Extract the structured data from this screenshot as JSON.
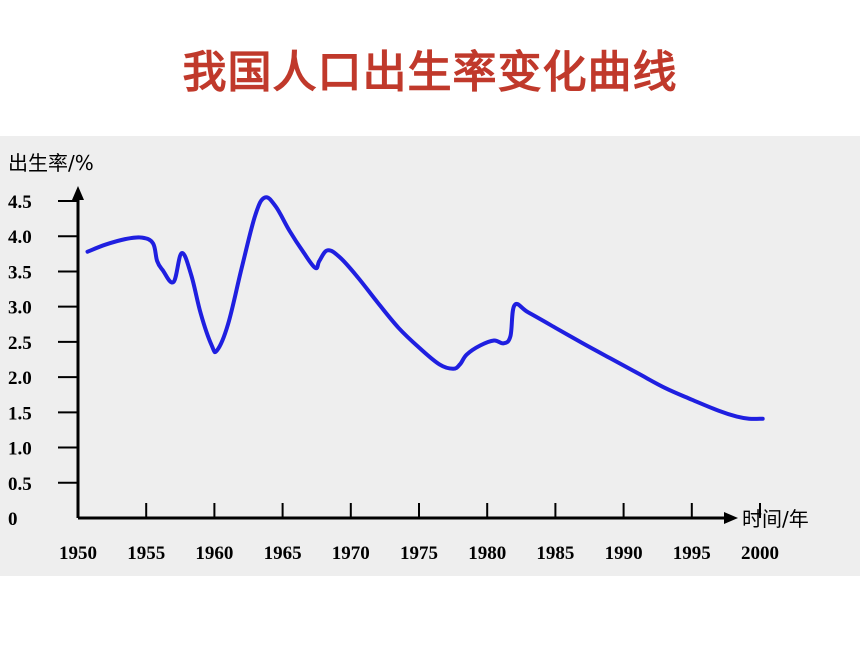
{
  "page": {
    "title": "我国人口出生率变化曲线"
  },
  "chart_data": {
    "type": "line",
    "title": "我国人口出生率变化曲线",
    "ylabel": "出生率/%",
    "xlabel": "时间/年",
    "xlim": [
      1950,
      2000
    ],
    "ylim": [
      0,
      4.5
    ],
    "x_ticks": [
      1950,
      1955,
      1960,
      1965,
      1970,
      1975,
      1980,
      1985,
      1990,
      1995,
      2000
    ],
    "x_tick_labels": [
      "1950",
      "1955",
      "1960",
      "1965",
      "1970",
      "1975",
      "1980",
      "1985",
      "1990",
      "1995",
      "2000"
    ],
    "y_ticks": [
      0,
      0.5,
      1.0,
      1.5,
      2.0,
      2.5,
      3.0,
      3.5,
      4.0,
      4.5
    ],
    "y_tick_labels": [
      "0",
      "0.5",
      "1.0",
      "1.5",
      "2.0",
      "2.5",
      "3.0",
      "3.5",
      "4.0",
      "4.5"
    ],
    "grid": false,
    "line_color": "#1f1fe0",
    "series": [
      {
        "x": [
          1950.7,
          1952,
          1953.5,
          1954.7,
          1955.5,
          1955.8,
          1956.2,
          1957,
          1957.6,
          1958.3,
          1959,
          1959.8,
          1960.2,
          1961,
          1962,
          1963,
          1963.7,
          1964.5,
          1965.5,
          1966.5,
          1967.4,
          1967.7,
          1968.3,
          1969.2,
          1970.5,
          1972,
          1973.5,
          1975,
          1976.5,
          1977.5,
          1978,
          1978.5,
          1979.5,
          1980.5,
          1981.2,
          1981.7,
          1982,
          1983,
          1985,
          1987,
          1989,
          1991,
          1993,
          1995,
          1997,
          1998.3,
          1999.2,
          2000.2
        ],
        "y": [
          3.78,
          3.88,
          3.96,
          3.98,
          3.9,
          3.65,
          3.52,
          3.35,
          3.76,
          3.45,
          2.9,
          2.45,
          2.38,
          2.75,
          3.55,
          4.3,
          4.55,
          4.42,
          4.08,
          3.78,
          3.55,
          3.65,
          3.8,
          3.7,
          3.42,
          3.05,
          2.7,
          2.42,
          2.18,
          2.12,
          2.18,
          2.32,
          2.45,
          2.52,
          2.48,
          2.58,
          3.02,
          2.92,
          2.7,
          2.48,
          2.27,
          2.06,
          1.85,
          1.68,
          1.52,
          1.44,
          1.41,
          1.41
        ]
      }
    ]
  }
}
